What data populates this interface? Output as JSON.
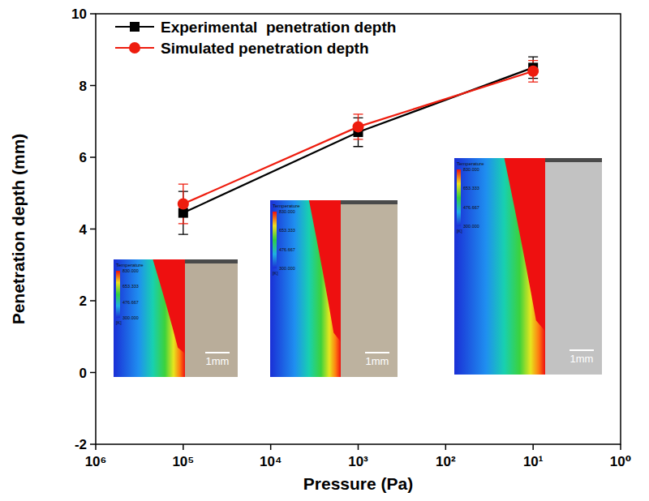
{
  "chart_data": {
    "type": "line",
    "x_label": "Pressure (Pa)",
    "y_label": "Penetration depth (mm)",
    "log": "x",
    "legend": "upper left",
    "x": [
      100000,
      1000,
      10
    ],
    "xlim": [
      1000000,
      1
    ],
    "xticks": [
      {
        "value": 1000000,
        "label": "10⁶"
      },
      {
        "value": 100000,
        "label": "10⁵"
      },
      {
        "value": 10000,
        "label": "10⁴"
      },
      {
        "value": 1000,
        "label": "10³"
      },
      {
        "value": 100,
        "label": "10²"
      },
      {
        "value": 10,
        "label": "10¹"
      },
      {
        "value": 1,
        "label": "10⁰"
      }
    ],
    "ylim": [
      -2,
      10
    ],
    "yticks": [
      -2,
      0,
      2,
      4,
      6,
      8,
      10
    ],
    "series": [
      {
        "name": "Experimental  penetration depth",
        "color": "#000000",
        "marker": "square",
        "line_style": "solid",
        "values": [
          4.45,
          6.7,
          8.5
        ],
        "errors": [
          0.6,
          0.4,
          0.3
        ]
      },
      {
        "name": "Simulated penetration depth",
        "color": "#ee1c0e",
        "marker": "circle",
        "line_style": "solid",
        "values": [
          4.7,
          6.85,
          8.4
        ],
        "errors": [
          0.55,
          0.35,
          0.3
        ]
      }
    ],
    "inset_colorbar": {
      "title": "Temperature",
      "unit": "[K]",
      "ticks": [
        {
          "value": 830,
          "label": "830.000"
        },
        {
          "value": 653.333,
          "label": "653.333"
        },
        {
          "value": 476.667,
          "label": "476.667"
        },
        {
          "value": 300,
          "label": "300.000"
        }
      ]
    },
    "inset_scale_bar": "1mm"
  }
}
